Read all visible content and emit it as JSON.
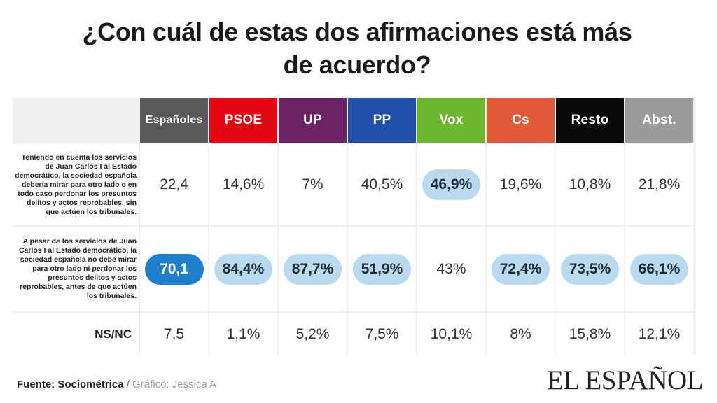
{
  "title_lines": [
    "¿Con cuál de estas dos afirmaciones está más",
    "de acuerdo?"
  ],
  "chart_data": {
    "type": "table",
    "columns": [
      {
        "label": "Españoles",
        "color": "#5a5a5a"
      },
      {
        "label": "PSOE",
        "color": "#e30613"
      },
      {
        "label": "UP",
        "color": "#6b2266"
      },
      {
        "label": "PP",
        "color": "#1f4fa8"
      },
      {
        "label": "Vox",
        "color": "#6cb52d"
      },
      {
        "label": "Cs",
        "color": "#e2593a"
      },
      {
        "label": "Resto",
        "color": "#0a0a0a"
      },
      {
        "label": "Abst.",
        "color": "#9b9b9b"
      }
    ],
    "rows": [
      {
        "label": "Teniendo en cuenta los servicios de Juan Carlos I al Estado democrático, la sociedad española debería mirar para otro lado o en todo caso perdonar los presuntos delitos y actos reprobables, sin que actúen los tribunales.",
        "values": [
          "22,4",
          "14,6%",
          "7%",
          "40,5%",
          "46,9%",
          "19,6%",
          "10,8%",
          "21,8%"
        ],
        "highlight": [
          "",
          "",
          "",
          "",
          "light",
          "",
          "",
          ""
        ]
      },
      {
        "label": "A pesar de los servicios de Juan Carlos I al Estado democrático, la sociedad española no debe mirar para otro lado ni perdonar los presuntos delitos y actos reprobables, antes de que actúen los tribunales.",
        "values": [
          "70,1",
          "84,4%",
          "87,7%",
          "51,9%",
          "43%",
          "72,4%",
          "73,5%",
          "66,1%"
        ],
        "highlight": [
          "dark",
          "light",
          "light",
          "light",
          "",
          "light",
          "light",
          "light"
        ]
      },
      {
        "label": "NS/NC",
        "values": [
          "7,5",
          "1,1%",
          "5,2%",
          "7,5%",
          "10,1%",
          "8%",
          "15,8%",
          "12,1%"
        ],
        "highlight": [
          "",
          "",
          "",
          "",
          "",
          "",
          "",
          ""
        ]
      }
    ]
  },
  "footer": {
    "source": "Fuente: Sociométrica",
    "separator": " / ",
    "author": "Gráfico: Jessica A"
  },
  "brand": "EL ESPAÑOL"
}
